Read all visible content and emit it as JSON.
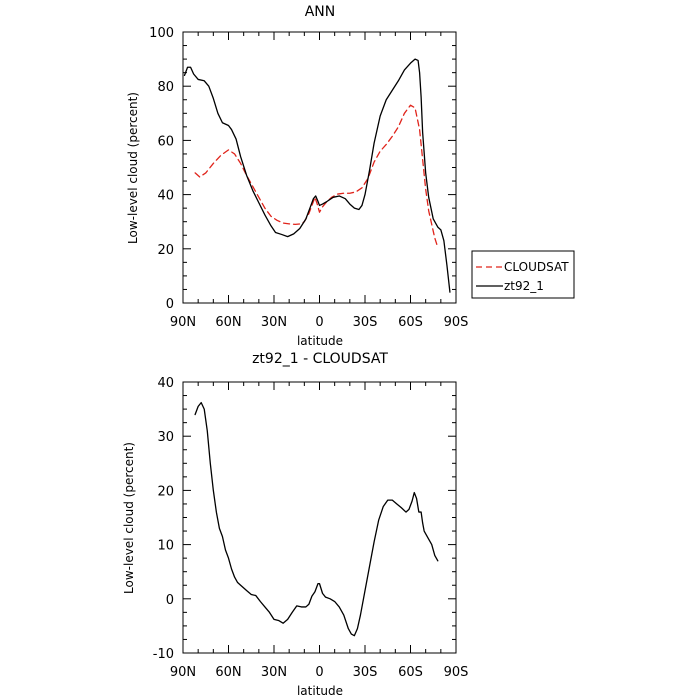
{
  "chart_data": [
    {
      "type": "line",
      "title": "ANN",
      "xlabel": "latitude",
      "ylabel": "Low-level cloud (percent)",
      "xlim": [
        90,
        -90
      ],
      "ylim": [
        0,
        100
      ],
      "x_ticks": [
        {
          "value": 90,
          "label": "90N"
        },
        {
          "value": 60,
          "label": "60N"
        },
        {
          "value": 30,
          "label": "30N"
        },
        {
          "value": 0,
          "label": "0"
        },
        {
          "value": -30,
          "label": "30S"
        },
        {
          "value": -60,
          "label": "60S"
        },
        {
          "value": -90,
          "label": "90S"
        }
      ],
      "y_ticks": [
        0,
        20,
        40,
        60,
        80,
        100
      ],
      "legend_position": "right",
      "series": [
        {
          "name": "CLOUDSAT",
          "color": "#e0241b",
          "dash": "dashed",
          "points": [
            [
              82,
              48
            ],
            [
              79,
              46.5
            ],
            [
              75,
              48
            ],
            [
              70,
              51.5
            ],
            [
              65,
              54.5
            ],
            [
              60,
              56.5
            ],
            [
              56,
              55
            ],
            [
              52,
              51.5
            ],
            [
              48,
              47
            ],
            [
              44,
              43
            ],
            [
              40,
              39
            ],
            [
              36,
              35
            ],
            [
              32,
              32
            ],
            [
              28,
              30.5
            ],
            [
              24,
              29.5
            ],
            [
              20,
              29.2
            ],
            [
              16,
              29
            ],
            [
              12,
              29.2
            ],
            [
              10,
              30
            ],
            [
              7,
              33
            ],
            [
              5,
              36
            ],
            [
              3,
              39
            ],
            [
              1.5,
              36.5
            ],
            [
              0,
              33.5
            ],
            [
              -2,
              35.5
            ],
            [
              -5,
              37.5
            ],
            [
              -8,
              39
            ],
            [
              -12,
              40.2
            ],
            [
              -16,
              40.5
            ],
            [
              -20,
              40.5
            ],
            [
              -24,
              41
            ],
            [
              -28,
              42.5
            ],
            [
              -32,
              46
            ],
            [
              -36,
              52
            ],
            [
              -40,
              56
            ],
            [
              -44,
              58.5
            ],
            [
              -48,
              61.5
            ],
            [
              -52,
              65
            ],
            [
              -56,
              70
            ],
            [
              -60,
              73
            ],
            [
              -63,
              72
            ],
            [
              -66,
              64
            ],
            [
              -68,
              53
            ],
            [
              -70,
              42
            ],
            [
              -72,
              34
            ],
            [
              -74,
              29
            ],
            [
              -76,
              24
            ],
            [
              -78,
              20.5
            ]
          ]
        },
        {
          "name": "zt92_1",
          "color": "#000000",
          "dash": "solid",
          "points": [
            [
              89,
              84
            ],
            [
              87,
              87
            ],
            [
              85,
              87
            ],
            [
              83,
              84.5
            ],
            [
              80,
              82.5
            ],
            [
              76,
              82
            ],
            [
              73,
              80
            ],
            [
              70,
              75.5
            ],
            [
              67,
              70
            ],
            [
              64,
              66.5
            ],
            [
              62,
              66
            ],
            [
              60,
              65.5
            ],
            [
              58,
              64
            ],
            [
              55,
              60.5
            ],
            [
              52,
              54
            ],
            [
              48,
              47
            ],
            [
              44,
              41.5
            ],
            [
              40,
              37
            ],
            [
              36,
              32.5
            ],
            [
              32,
              28.5
            ],
            [
              29,
              26
            ],
            [
              25,
              25.3
            ],
            [
              21,
              24.5
            ],
            [
              17,
              25.5
            ],
            [
              13,
              27.5
            ],
            [
              9,
              31
            ],
            [
              6,
              35.5
            ],
            [
              4,
              38.5
            ],
            [
              2.5,
              39.5
            ],
            [
              1,
              37.5
            ],
            [
              0,
              36
            ],
            [
              -2,
              36.5
            ],
            [
              -5,
              37.5
            ],
            [
              -9,
              39
            ],
            [
              -13,
              39.5
            ],
            [
              -17,
              38.5
            ],
            [
              -20,
              36.5
            ],
            [
              -23,
              35
            ],
            [
              -26,
              34.5
            ],
            [
              -28,
              36
            ],
            [
              -30,
              40
            ],
            [
              -33,
              49
            ],
            [
              -36,
              59
            ],
            [
              -40,
              69
            ],
            [
              -44,
              75
            ],
            [
              -48,
              78.5
            ],
            [
              -52,
              82
            ],
            [
              -56,
              86
            ],
            [
              -60,
              88.5
            ],
            [
              -63,
              90
            ],
            [
              -65,
              89.5
            ],
            [
              -66,
              85
            ],
            [
              -67,
              76
            ],
            [
              -68,
              63
            ],
            [
              -70,
              48
            ],
            [
              -72,
              39
            ],
            [
              -75,
              31
            ],
            [
              -78,
              28
            ],
            [
              -80,
              27
            ],
            [
              -82,
              23
            ],
            [
              -84,
              14
            ],
            [
              -86,
              4
            ]
          ]
        }
      ]
    },
    {
      "type": "line",
      "title": "zt92_1 - CLOUDSAT",
      "xlabel": "latitude",
      "ylabel": "Low-level cloud (percent)",
      "xlim": [
        90,
        -90
      ],
      "ylim": [
        -10,
        40
      ],
      "x_ticks": [
        {
          "value": 90,
          "label": "90N"
        },
        {
          "value": 60,
          "label": "60N"
        },
        {
          "value": 30,
          "label": "30N"
        },
        {
          "value": 0,
          "label": "0"
        },
        {
          "value": -30,
          "label": "30S"
        },
        {
          "value": -60,
          "label": "60S"
        },
        {
          "value": -90,
          "label": "90S"
        }
      ],
      "y_ticks": [
        -10,
        0,
        10,
        20,
        30,
        40
      ],
      "series": [
        {
          "color": "#000000",
          "dash": "solid",
          "points": [
            [
              82,
              34
            ],
            [
              80,
              35.5
            ],
            [
              78,
              36.2
            ],
            [
              76,
              35
            ],
            [
              74,
              31
            ],
            [
              72,
              25
            ],
            [
              70,
              20
            ],
            [
              68,
              16
            ],
            [
              66,
              13
            ],
            [
              64,
              11.5
            ],
            [
              62,
              9
            ],
            [
              60,
              7.5
            ],
            [
              58,
              5.5
            ],
            [
              56,
              4
            ],
            [
              54,
              3
            ],
            [
              52,
              2.5
            ],
            [
              48,
              1.5
            ],
            [
              45,
              0.8
            ],
            [
              42,
              0.6
            ],
            [
              39,
              -0.5
            ],
            [
              36,
              -1.5
            ],
            [
              33,
              -2.5
            ],
            [
              30,
              -3.8
            ],
            [
              27,
              -4
            ],
            [
              24,
              -4.5
            ],
            [
              21,
              -3.8
            ],
            [
              18,
              -2.5
            ],
            [
              15,
              -1.3
            ],
            [
              12,
              -1.5
            ],
            [
              9,
              -1.5
            ],
            [
              7,
              -1
            ],
            [
              5,
              0.5
            ],
            [
              3,
              1.3
            ],
            [
              1,
              2.8
            ],
            [
              0,
              2.8
            ],
            [
              -2,
              1
            ],
            [
              -4,
              0.3
            ],
            [
              -7,
              0
            ],
            [
              -10,
              -0.5
            ],
            [
              -13,
              -1.5
            ],
            [
              -16,
              -3
            ],
            [
              -19,
              -5.5
            ],
            [
              -21,
              -6.5
            ],
            [
              -23,
              -6.8
            ],
            [
              -25,
              -5.5
            ],
            [
              -27,
              -3
            ],
            [
              -30,
              1.5
            ],
            [
              -33,
              6
            ],
            [
              -36,
              10.5
            ],
            [
              -39,
              14.5
            ],
            [
              -42,
              17
            ],
            [
              -45,
              18.2
            ],
            [
              -48,
              18.2
            ],
            [
              -51,
              17.5
            ],
            [
              -54,
              16.8
            ],
            [
              -57,
              16
            ],
            [
              -59,
              16.5
            ],
            [
              -61,
              18
            ],
            [
              -62.5,
              19.6
            ],
            [
              -64,
              18.5
            ],
            [
              -65.5,
              16
            ],
            [
              -67,
              16
            ],
            [
              -68,
              14
            ],
            [
              -69,
              12.5
            ],
            [
              -70,
              12
            ],
            [
              -72,
              11
            ],
            [
              -74,
              10
            ],
            [
              -76,
              8
            ],
            [
              -78,
              7
            ]
          ]
        }
      ]
    }
  ]
}
